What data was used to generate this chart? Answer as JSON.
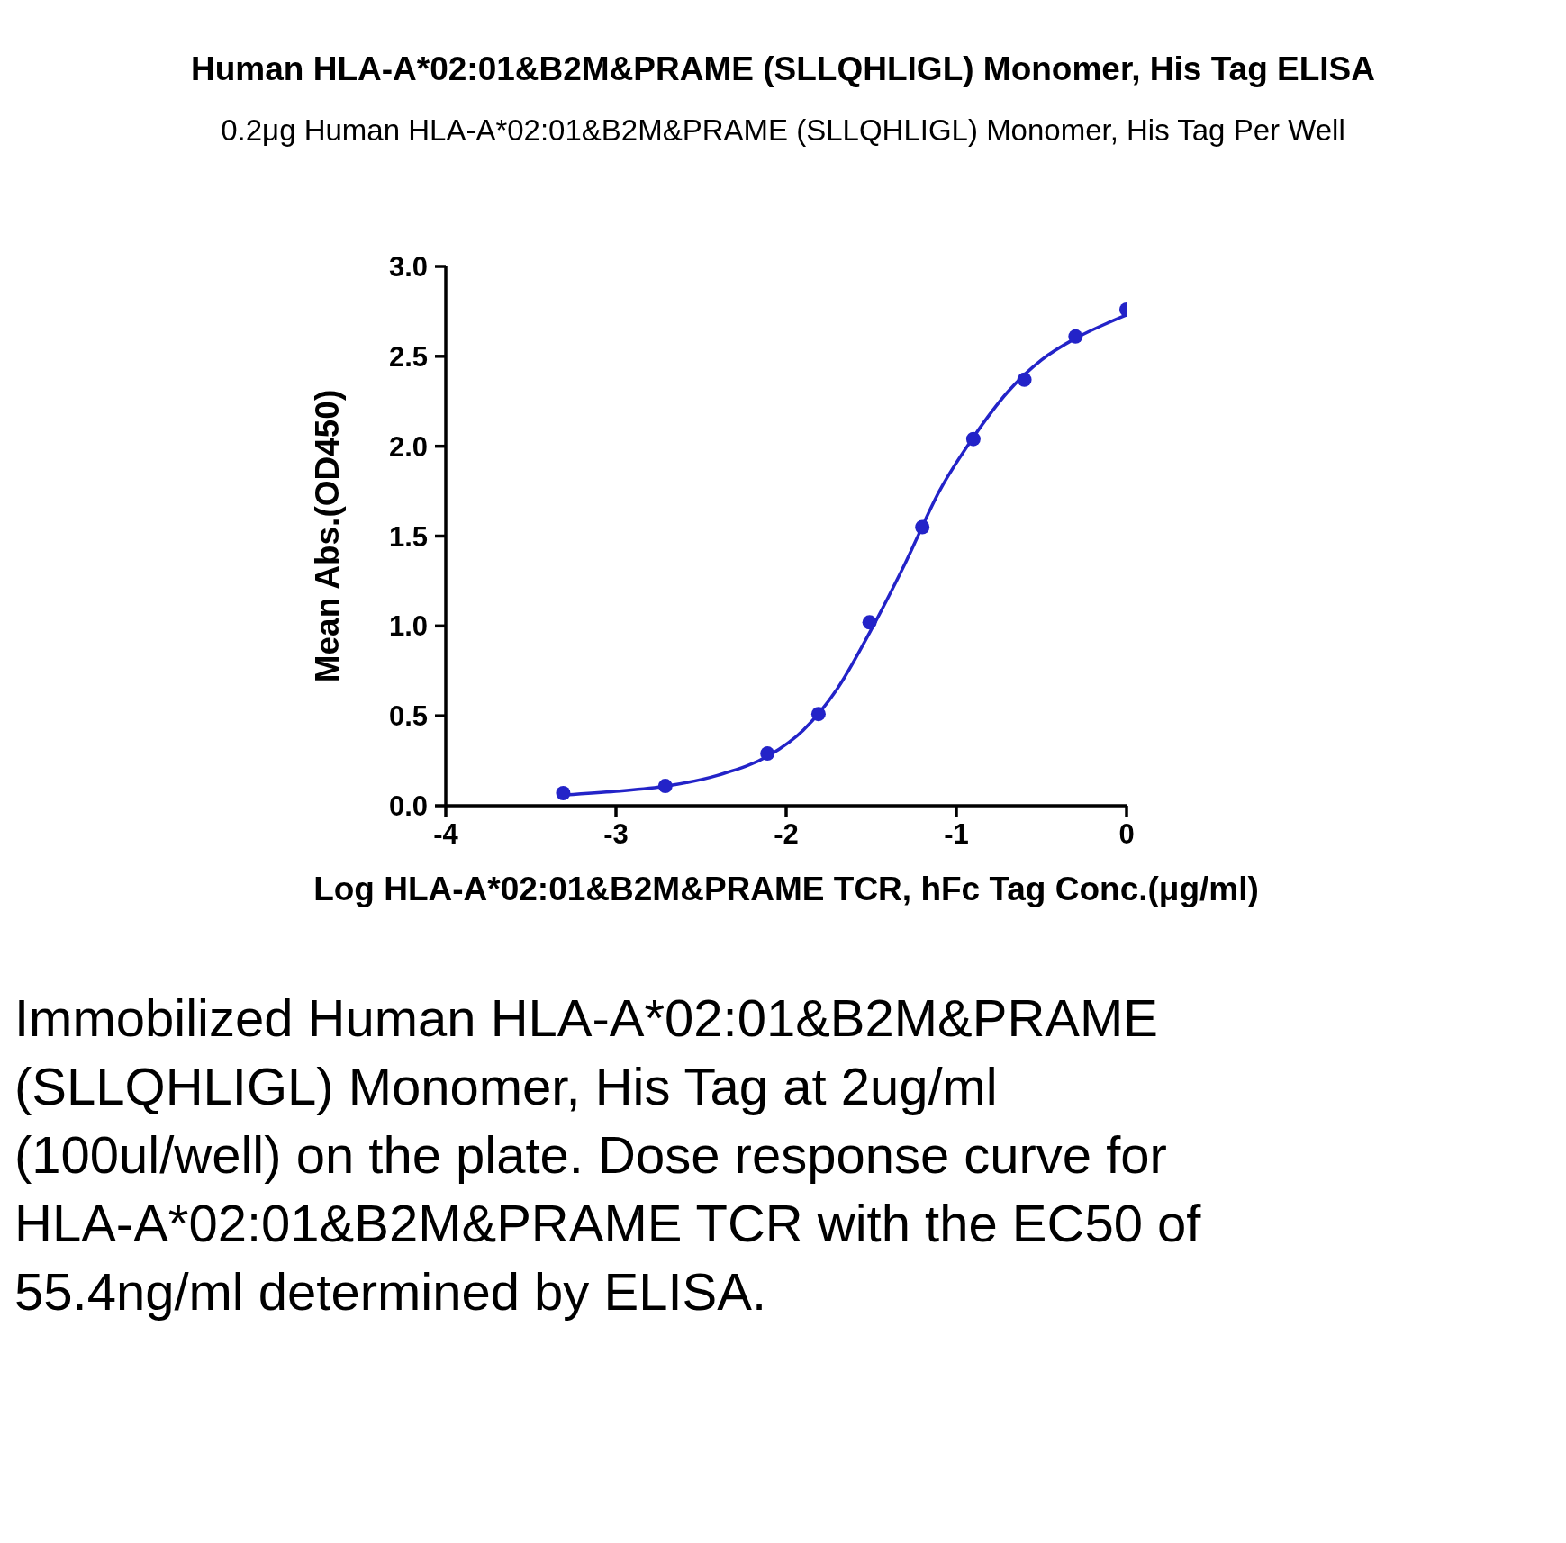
{
  "chart_data": {
    "type": "scatter",
    "title": "Human HLA-A*02:01&B2M&PRAME (SLLQHLIGL) Monomer, His Tag ELISA",
    "subtitle": "0.2μg Human HLA-A*02:01&B2M&PRAME (SLLQHLIGL) Monomer, His Tag Per Well",
    "xlabel": "Log HLA-A*02:01&B2M&PRAME TCR, hFc Tag Conc.(μg/ml)",
    "ylabel": "Mean Abs.(OD450)",
    "annotations": [
      "Immobilized Human HLA-A*02:01&B2M&PRAME (SLLQHLIGL) Monomer, His Tag at 2ug/ml (100ul/well) on the plate. Dose response curve for HLA-A*02:01&B2M&PRAME TCR with the EC50 of 55.4ng/ml determined by ELISA."
    ],
    "xlim": [
      -4,
      0
    ],
    "xticks": [
      -4,
      -3,
      -2,
      -1,
      0
    ],
    "ylim": [
      0,
      3
    ],
    "yticks": [
      {
        "value": 0,
        "label": "0.0"
      },
      {
        "value": 0.5,
        "label": "0.5"
      },
      {
        "value": 1,
        "label": "1.0"
      },
      {
        "value": 1.5,
        "label": "1.5"
      },
      {
        "value": 2,
        "label": "2.0"
      },
      {
        "value": 2.5,
        "label": "2.5"
      },
      {
        "value": 3,
        "label": "3.0"
      }
    ],
    "marker": "circle",
    "series": [
      {
        "color": "#2323c8",
        "x": [
          -3.31,
          -2.71,
          -2.11,
          -1.81,
          -1.51,
          -1.2,
          -0.9,
          -0.6,
          -0.3,
          0
        ],
        "values": [
          0.07,
          0.11,
          0.29,
          0.51,
          1.02,
          1.55,
          2.04,
          2.37,
          2.61,
          2.76
        ]
      },
      {
        "type": "line",
        "marker": "none",
        "color": "#2323c8",
        "x": [
          -3.3,
          -3.0,
          -2.7,
          -2.4,
          -2.1,
          -1.9,
          -1.7,
          -1.5,
          -1.3,
          -1.1,
          -0.9,
          -0.7,
          -0.5,
          -0.3,
          -0.1,
          0
        ],
        "values": [
          0.06,
          0.08,
          0.11,
          0.17,
          0.28,
          0.42,
          0.65,
          0.98,
          1.35,
          1.75,
          2.05,
          2.3,
          2.48,
          2.6,
          2.69,
          2.73
        ]
      }
    ]
  }
}
